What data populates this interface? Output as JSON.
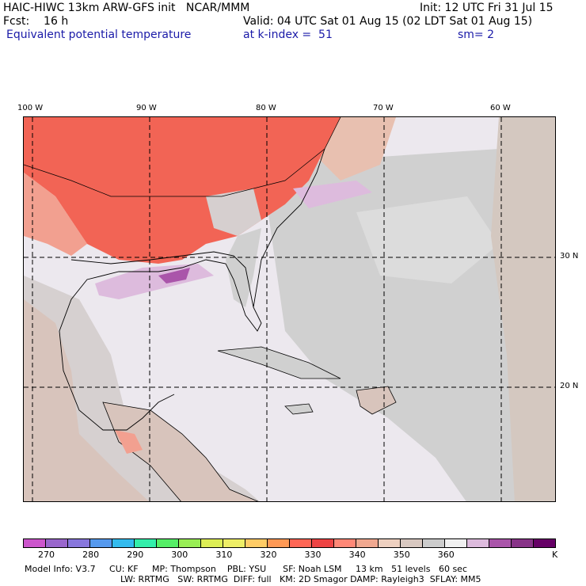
{
  "header": {
    "line1_left": "HAIC-HIWC 13km ARW-GFS init   NCAR/MMM",
    "line1_right": "Init: 12 UTC Fri 31 Jul 15",
    "line2_left": "Fcst:    16 h",
    "line2_right": "Valid: 04 UTC Sat 01 Aug 15 (02 LDT Sat 01 Aug 15)",
    "line3_left": "Equivalent potential temperature",
    "line3_mid": "at k-index =  51",
    "line3_right": "sm= 2"
  },
  "map": {
    "lon_labels": [
      "100 W",
      "90 W",
      "80 W",
      "70 W",
      "60 W"
    ],
    "lat_labels": [
      "30 N",
      "20 N"
    ]
  },
  "colorbar": {
    "colors": [
      "#cc55cc",
      "#9966cc",
      "#8877dd",
      "#5599ee",
      "#33bbee",
      "#33eeaa",
      "#55ee66",
      "#99ee55",
      "#ddee55",
      "#eeee66",
      "#ffcc66",
      "#ff9955",
      "#ff6655",
      "#ee4444",
      "#ff8877",
      "#f0a890",
      "#eed0c0",
      "#d8c8c0",
      "#cccccc",
      "#f0f0f0",
      "#ddbbdd",
      "#aa55aa",
      "#883388",
      "#660066"
    ],
    "labels": [
      "270",
      "280",
      "290",
      "300",
      "310",
      "320",
      "330",
      "340",
      "350",
      "360"
    ],
    "unit": "K"
  },
  "footer": {
    "line1": "Model Info: V3.7     CU: KF     MP: Thompson    PBL: YSU      SF: Noah LSM     13 km   51 levels   60 sec",
    "line2": "LW: RRTMG   SW: RRTMG  DIFF: full   KM: 2D Smagor DAMP: Rayleigh3  SFLAY: MM5"
  }
}
